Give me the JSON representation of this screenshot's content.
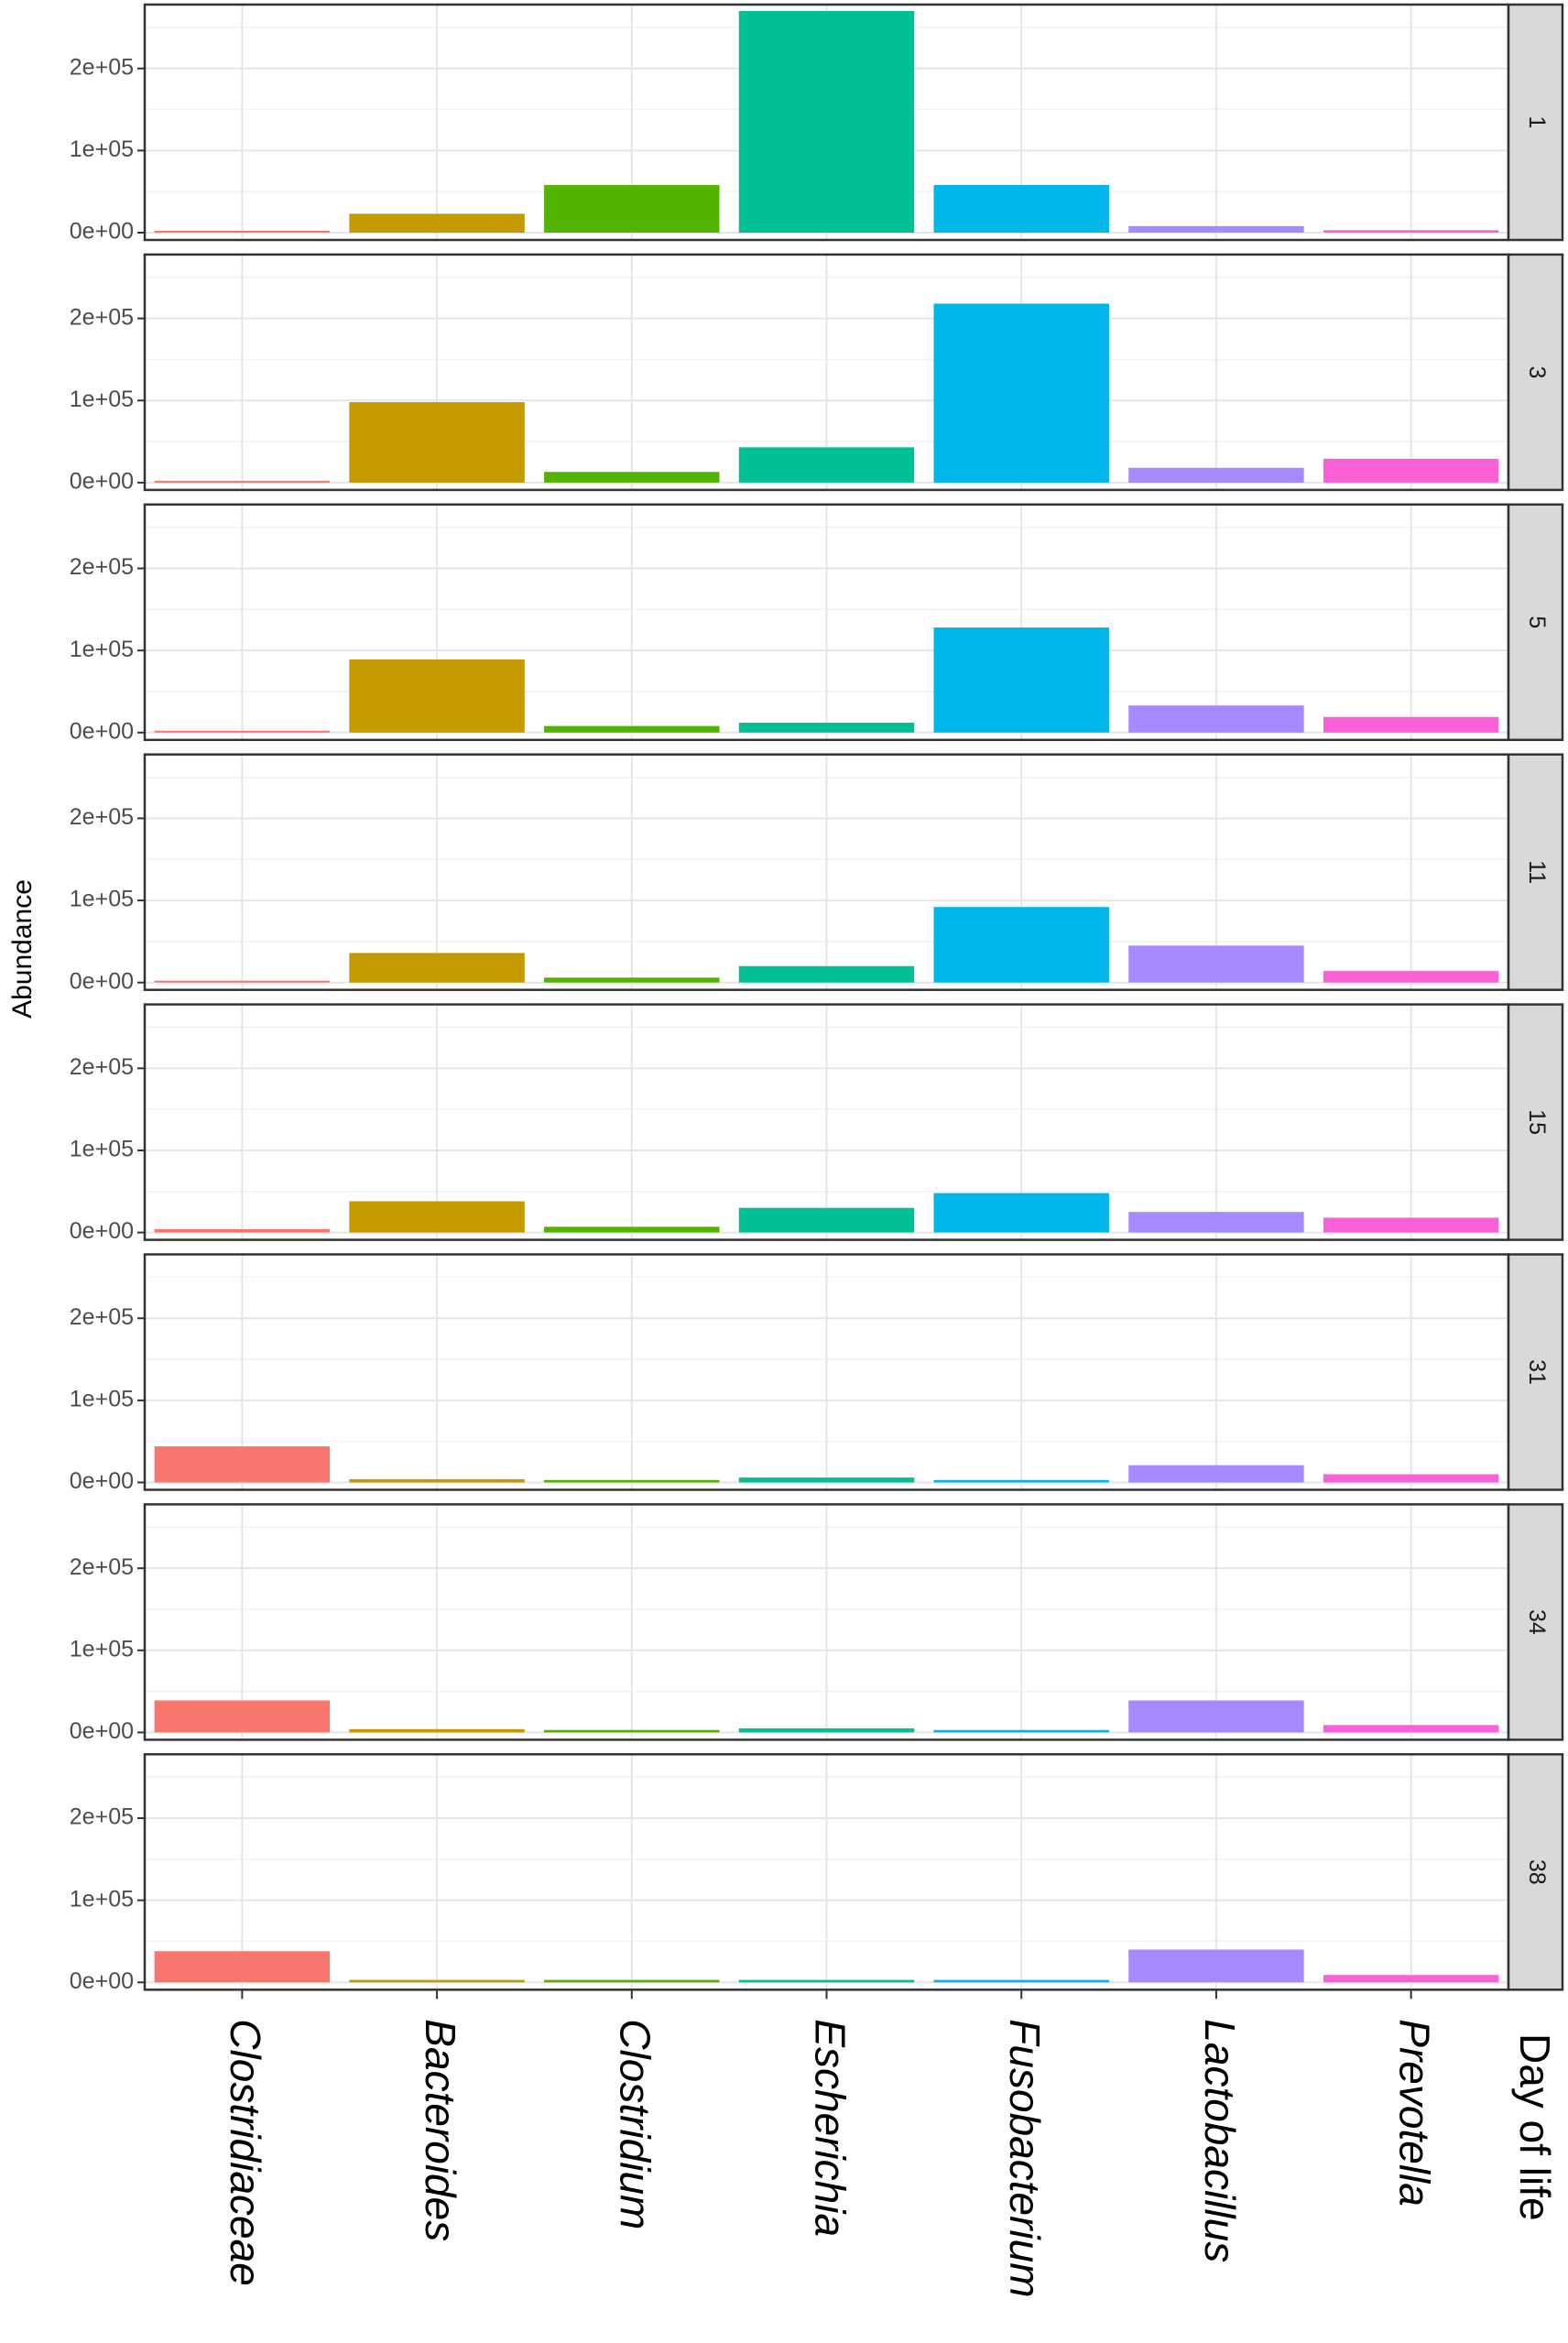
{
  "chart_data": {
    "type": "bar",
    "facet_by": "Day of life",
    "facet_strip_position": "right",
    "ylabel": "Abundance",
    "legend_title": "Day of life",
    "ylim": [
      0,
      270000
    ],
    "y_ticks": [
      {
        "value": 0,
        "label": "0e+00"
      },
      {
        "value": 100000,
        "label": "1e+05"
      },
      {
        "value": 200000,
        "label": "2e+05"
      }
    ],
    "categories": [
      "Clostridiaceae",
      "Bacteroides",
      "Clostridium",
      "Escherichia",
      "Fusobacterium",
      "Lactobacillus",
      "Prevotella"
    ],
    "colors": [
      "#F8766D",
      "#C49A00",
      "#53B400",
      "#00C094",
      "#00B6EB",
      "#A58AFF",
      "#FB61D7"
    ],
    "grid": true,
    "category_label_rotation": 90,
    "panels": [
      {
        "day": "1",
        "values": [
          1500,
          23000,
          58000,
          270000,
          58000,
          8000,
          3000
        ]
      },
      {
        "day": "3",
        "values": [
          1500,
          98000,
          13000,
          43000,
          218000,
          18000,
          29000
        ]
      },
      {
        "day": "5",
        "values": [
          1500,
          89000,
          8000,
          12000,
          128000,
          33000,
          19000
        ]
      },
      {
        "day": "11",
        "values": [
          1500,
          36000,
          6000,
          20000,
          92000,
          45000,
          14000
        ]
      },
      {
        "day": "15",
        "values": [
          4000,
          38000,
          7000,
          30000,
          48000,
          25000,
          18000
        ]
      },
      {
        "day": "31",
        "values": [
          44000,
          4000,
          3000,
          6000,
          3000,
          21000,
          10000
        ]
      },
      {
        "day": "34",
        "values": [
          39000,
          4000,
          3000,
          5000,
          3000,
          39000,
          9000
        ]
      },
      {
        "day": "38",
        "values": [
          38000,
          3000,
          3000,
          3000,
          3000,
          40000,
          9000
        ]
      }
    ]
  }
}
